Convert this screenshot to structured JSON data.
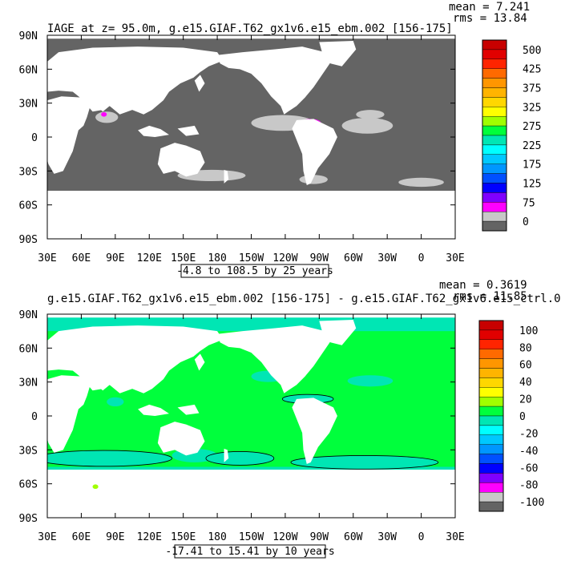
{
  "chart_data": [
    {
      "type": "heatmap",
      "title": "IAGE at z=  95.0m, g.e15.GIAF.T62_gx1v6.e15_ebm.002 [156-175]",
      "stats": {
        "mean": "mean = 7.241",
        "rms": "rms = 13.84"
      },
      "range_text": "-4.8 to 108.5 by 25 years",
      "x_ticks": [
        "30E",
        "60E",
        "90E",
        "120E",
        "150E",
        "180",
        "150W",
        "120W",
        "90W",
        "60W",
        "30W",
        "0",
        "30E"
      ],
      "y_ticks": [
        "90N",
        "60N",
        "30N",
        "0",
        "30S",
        "60S",
        "90S"
      ],
      "colorbar": {
        "labels": [
          "500",
          "425",
          "375",
          "325",
          "275",
          "225",
          "175",
          "125",
          "75",
          "0"
        ],
        "colors": [
          "#c80000",
          "#e10000",
          "#ff2400",
          "#ff6a00",
          "#ff9600",
          "#ffb400",
          "#ffd700",
          "#ffff00",
          "#a0ff00",
          "#00ff3c",
          "#00e6b4",
          "#00ffff",
          "#00c8ff",
          "#0096ff",
          "#0050ff",
          "#0000ff",
          "#8000ff",
          "#ff00ff",
          "#c8c8c8",
          "#646464"
        ]
      },
      "fill_note": "mostly dark gray (0-25), light gray (25-50) near 10N Pacific/Atlantic and Southern Ocean, magenta (50-75) in eastern tropical Pacific and near 60S"
    },
    {
      "type": "heatmap",
      "title": "g.e15.GIAF.T62_gx1v6.e15_ebm.002 [156-175] - g.e15.GIAF.T62_gx1v6.e15_ctrl.0",
      "stats": {
        "mean": "mean = 0.3619",
        "rms": "rms = 11.85"
      },
      "range_text": "-17.41 to 15.41 by 10 years",
      "x_ticks": [
        "30E",
        "60E",
        "90E",
        "120E",
        "150E",
        "180",
        "150W",
        "120W",
        "90W",
        "60W",
        "30W",
        "0",
        "30E"
      ],
      "y_ticks": [
        "90N",
        "60N",
        "30N",
        "0",
        "30S",
        "60S",
        "90S"
      ],
      "colorbar": {
        "labels": [
          "100",
          "80",
          "60",
          "40",
          "20",
          "0",
          "-20",
          "-40",
          "-60",
          "-80",
          "-100"
        ],
        "colors": [
          "#c80000",
          "#e10000",
          "#ff2400",
          "#ff6a00",
          "#ff9600",
          "#ffb400",
          "#ffd700",
          "#ffff00",
          "#a0ff00",
          "#00ff3c",
          "#00e6b4",
          "#00ffff",
          "#00c8ff",
          "#0096ff",
          "#0050ff",
          "#0000ff",
          "#8000ff",
          "#ff00ff",
          "#c8c8c8",
          "#646464"
        ]
      },
      "fill_note": "mostly green (0-10), cyan (-10-0) in Southern Ocean, Arctic and tropical Pacific"
    }
  ]
}
